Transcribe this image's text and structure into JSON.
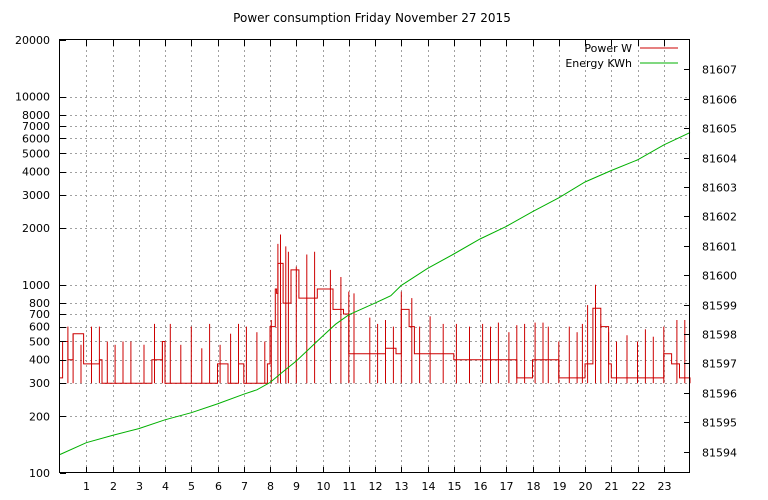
{
  "chart_data": {
    "type": "line",
    "title": "Power consumption Friday November 27 2015",
    "x": {
      "min": 0,
      "max": 24,
      "tick_labels": [
        "1",
        "2",
        "3",
        "4",
        "5",
        "6",
        "7",
        "8",
        "9",
        "10",
        "11",
        "12",
        "13",
        "14",
        "15",
        "16",
        "17",
        "18",
        "19",
        "20",
        "21",
        "22",
        "23"
      ],
      "grid": true
    },
    "y_left": {
      "scale": "log",
      "min": 100,
      "max": 20000,
      "ticks": [
        100,
        200,
        300,
        400,
        500,
        600,
        700,
        800,
        1000,
        2000,
        3000,
        4000,
        5000,
        6000,
        7000,
        8000,
        10000,
        20000
      ],
      "tick_labels": [
        "100",
        "200",
        "300",
        "400",
        "500",
        "600",
        "700",
        "800",
        "1000",
        "2000",
        "3000",
        "4000",
        "5000",
        "6000",
        "7000",
        "8000",
        "10000",
        "20000"
      ],
      "grid_at": [
        100,
        200,
        300,
        400,
        500,
        600,
        700,
        800,
        1000,
        2000,
        3000,
        4000,
        5000,
        6000,
        7000,
        8000,
        10000,
        20000
      ]
    },
    "y_right": {
      "scale": "log",
      "min": 81593.27,
      "max": 81608.0,
      "ticks": [
        81594,
        81595,
        81596,
        81597,
        81598,
        81599,
        81600,
        81601,
        81602,
        81603,
        81604,
        81605,
        81606,
        81607
      ],
      "tick_labels": [
        "81594",
        "81595",
        "81596",
        "81597",
        "81598",
        "81599",
        "81600",
        "81601",
        "81602",
        "81603",
        "81604",
        "81605",
        "81606",
        "81607"
      ]
    },
    "legend": {
      "placement": "top-right"
    },
    "series": [
      {
        "name": "Power W",
        "color": "#cc0000",
        "axis": "left",
        "style": "step",
        "x": [
          0,
          0.1,
          0.3,
          0.5,
          0.9,
          1.0,
          1.5,
          1.6,
          2.0,
          2.5,
          2.9,
          3.0,
          3.5,
          3.9,
          4.0,
          4.4,
          4.8,
          5.0,
          5.5,
          6.0,
          6.4,
          6.8,
          7.0,
          7.4,
          7.9,
          8.0,
          8.2,
          8.25,
          8.3,
          8.5,
          8.8,
          9.1,
          9.5,
          9.8,
          10.0,
          10.4,
          10.8,
          11.0,
          11.5,
          12.0,
          12.4,
          12.8,
          13.0,
          13.3,
          13.5,
          14.0,
          14.5,
          15.0,
          15.6,
          16.0,
          16.6,
          17.0,
          17.4,
          17.9,
          18.0,
          18.6,
          19.0,
          19.6,
          20.0,
          20.3,
          20.6,
          20.9,
          21.0,
          21.5,
          22.0,
          22.5,
          23.0,
          23.3,
          23.6,
          23.9,
          24.0
        ],
        "y": [
          320,
          500,
          400,
          550,
          380,
          380,
          400,
          300,
          300,
          300,
          300,
          300,
          400,
          500,
          300,
          300,
          300,
          300,
          300,
          380,
          300,
          380,
          300,
          300,
          380,
          600,
          950,
          900,
          1300,
          800,
          1200,
          850,
          850,
          950,
          950,
          740,
          700,
          430,
          430,
          430,
          460,
          430,
          740,
          600,
          430,
          430,
          430,
          400,
          400,
          400,
          400,
          400,
          320,
          320,
          400,
          400,
          320,
          320,
          380,
          750,
          600,
          380,
          320,
          320,
          320,
          320,
          430,
          380,
          320,
          320,
          300
        ]
      },
      {
        "name": "",
        "color": "#cc0000",
        "axis": "left",
        "style": "spikes",
        "x": [
          0.3,
          0.5,
          0.8,
          1.2,
          1.5,
          1.8,
          2.1,
          2.4,
          2.7,
          3.2,
          3.6,
          3.9,
          4.2,
          4.6,
          5.0,
          5.4,
          5.7,
          6.1,
          6.5,
          6.8,
          7.1,
          7.5,
          7.8,
          8.05,
          8.3,
          8.4,
          8.6,
          8.7,
          9.0,
          9.4,
          9.7,
          10.3,
          10.7,
          11.0,
          11.2,
          11.8,
          12.1,
          12.4,
          12.7,
          13.0,
          13.4,
          13.7,
          14.1,
          14.6,
          15.1,
          15.6,
          16.1,
          16.4,
          16.7,
          17.1,
          17.4,
          17.7,
          18.1,
          18.4,
          18.6,
          19.0,
          19.4,
          19.7,
          19.9,
          20.1,
          20.4,
          20.6,
          20.9,
          21.2,
          21.6,
          22.0,
          22.3,
          22.6,
          23.0,
          23.5,
          23.8
        ],
        "y": [
          600,
          550,
          480,
          600,
          600,
          500,
          480,
          500,
          500,
          480,
          620,
          500,
          620,
          480,
          600,
          460,
          620,
          480,
          550,
          620,
          600,
          560,
          500,
          650,
          1650,
          1850,
          1600,
          1500,
          1250,
          1450,
          1500,
          1200,
          1100,
          920,
          900,
          670,
          620,
          650,
          600,
          920,
          850,
          600,
          680,
          620,
          620,
          600,
          620,
          600,
          630,
          560,
          610,
          620,
          630,
          630,
          600,
          500,
          600,
          560,
          620,
          780,
          1000,
          620,
          560,
          500,
          540,
          500,
          580,
          530,
          600,
          650,
          650
        ]
      },
      {
        "name": "Energy KWh",
        "color": "#00b000",
        "axis": "right",
        "style": "line",
        "x": [
          0,
          1,
          2,
          3,
          4,
          5,
          6,
          7,
          7.5,
          8,
          8.5,
          9,
          9.5,
          10,
          10.5,
          11,
          12,
          12.6,
          13,
          14,
          15,
          16,
          17,
          18,
          19,
          20,
          21,
          22,
          23,
          24
        ],
        "y": [
          81593.9,
          81594.3,
          81594.55,
          81594.78,
          81595.08,
          81595.32,
          81595.62,
          81595.95,
          81596.1,
          81596.35,
          81596.72,
          81597.08,
          81597.5,
          81597.92,
          81598.33,
          81598.65,
          81599.05,
          81599.3,
          81599.65,
          81600.23,
          81600.72,
          81601.23,
          81601.66,
          81602.16,
          81602.63,
          81603.17,
          81603.56,
          81603.92,
          81604.43,
          81604.85
        ]
      }
    ]
  }
}
